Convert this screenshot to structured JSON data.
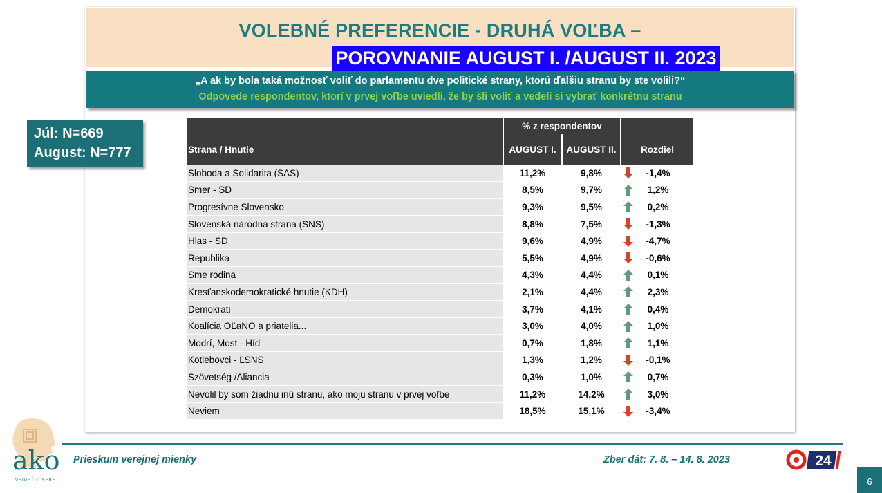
{
  "title": {
    "line1": "VOLEBNÉ PREFERENCIE - DRUHÁ VOĽBA –",
    "line2": "POROVNANIE AUGUST I. /AUGUST II. 2023"
  },
  "question": {
    "line1": "„A ak by bola taká možnosť voliť do parlamentu dve politické strany, ktorú ďalšiu stranu by ste volili?“",
    "line2": "Odpovede respondentov, ktorí v prvej voľbe uviedli, že by šli voliť a vedeli si vybrať konkrétnu stranu"
  },
  "sample": {
    "line1": "Júl: N=669",
    "line2": "August: N=777"
  },
  "table": {
    "group_header": "% z respondentov",
    "col_party": "Strana / Hnutie",
    "col_a": "AUGUST I.",
    "col_b": "AUGUST II.",
    "col_diff": "Rozdiel",
    "rows": [
      {
        "party": "Sloboda a Solidarita (SAS)",
        "a": "11,2%",
        "b": "9,8%",
        "trend": "down",
        "diff": "-1,4%"
      },
      {
        "party": "Smer - SD",
        "a": "8,5%",
        "b": "9,7%",
        "trend": "up",
        "diff": "1,2%"
      },
      {
        "party": "Progresívne Slovensko",
        "a": "9,3%",
        "b": "9,5%",
        "trend": "up",
        "diff": "0,2%"
      },
      {
        "party": "Slovenská národná strana (SNS)",
        "a": "8,8%",
        "b": "7,5%",
        "trend": "down",
        "diff": "-1,3%"
      },
      {
        "party": "Hlas - SD",
        "a": "9,6%",
        "b": "4,9%",
        "trend": "down",
        "diff": "-4,7%"
      },
      {
        "party": "Republika",
        "a": "5,5%",
        "b": "4,9%",
        "trend": "down",
        "diff": "-0,6%"
      },
      {
        "party": "Sme rodina",
        "a": "4,3%",
        "b": "4,4%",
        "trend": "up",
        "diff": "0,1%"
      },
      {
        "party": "Kresťanskodemokratické hnutie (KDH)",
        "a": "2,1%",
        "b": "4,4%",
        "trend": "up",
        "diff": "2,3%"
      },
      {
        "party": "Demokrati",
        "a": "3,7%",
        "b": "4,1%",
        "trend": "up",
        "diff": "0,4%"
      },
      {
        "party": "Koalícia OĽaNO a priatelia...",
        "a": "3,0%",
        "b": "4,0%",
        "trend": "up",
        "diff": "1,0%"
      },
      {
        "party": "Modrí, Most - Híd",
        "a": "0,7%",
        "b": "1,8%",
        "trend": "up",
        "diff": "1,1%"
      },
      {
        "party": "Kotlebovci - ĽSNS",
        "a": "1,3%",
        "b": "1,2%",
        "trend": "down",
        "diff": "-0,1%"
      },
      {
        "party": "Szövetség /Aliancia",
        "a": "0,3%",
        "b": "1,0%",
        "trend": "up",
        "diff": "0,7%"
      },
      {
        "party": "Nevolil by som žiadnu inú stranu, ako moju stranu v prvej voľbe",
        "a": "11,2%",
        "b": "14,2%",
        "trend": "up",
        "diff": "3,0%"
      },
      {
        "party": "Neviem",
        "a": "18,5%",
        "b": "15,1%",
        "trend": "down",
        "diff": "-3,4%"
      }
    ]
  },
  "footer": {
    "left": "Prieskum verejnej mienky",
    "right": "Zber dát: 7. 8. – 14. 8. 2023",
    "page": "6"
  },
  "logo": {
    "ako_text": "ako",
    "ako_sub": "VEDIEŤ O SEBE",
    "tv_text": "24"
  },
  "colors": {
    "teal": "#157a80",
    "title_bg": "#f8dfc2",
    "highlight_blue": "#1a00ff",
    "green_text": "#8fd14f",
    "arrow_up": "#5f9b79",
    "arrow_down": "#d2452a",
    "header_dark": "#3c3c3c",
    "row_grey": "#e6e6e6"
  },
  "icons": {
    "up": "arrow-up-icon",
    "down": "arrow-down-icon"
  }
}
